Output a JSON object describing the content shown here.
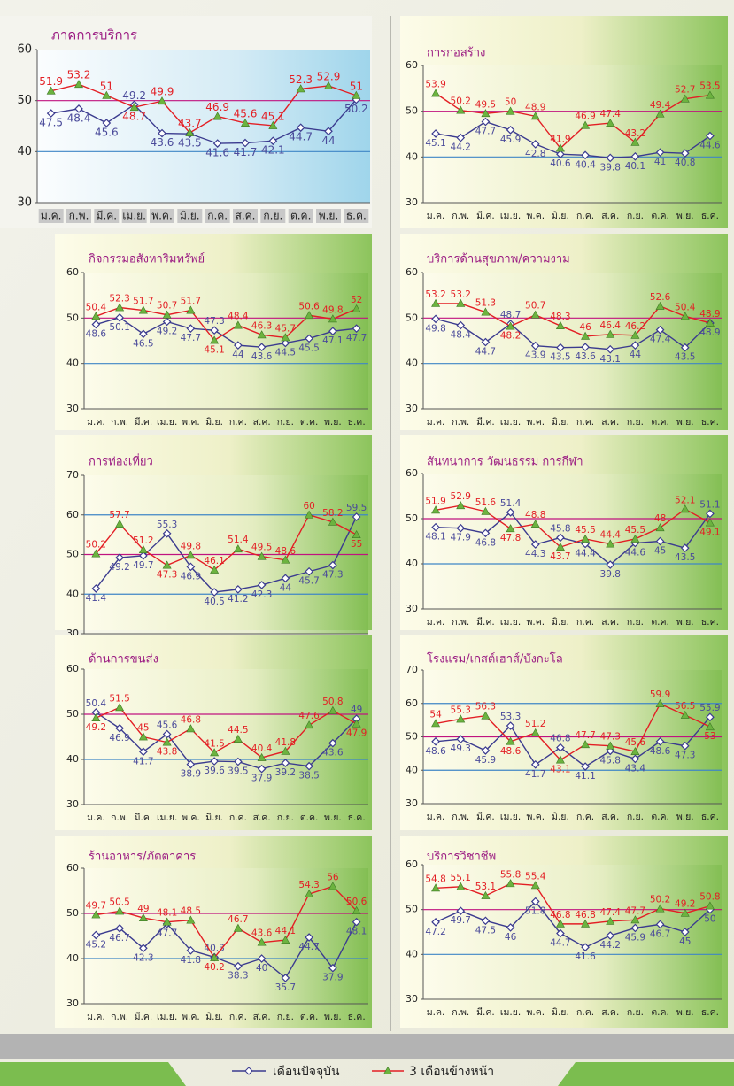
{
  "chart_data": [
    {
      "type": "line",
      "title": "ภาคการบริการ",
      "categories": [
        "ม.ค.",
        "ก.พ.",
        "มี.ค.",
        "เม.ย.",
        "พ.ค.",
        "มิ.ย.",
        "ก.ค.",
        "ส.ค.",
        "ก.ย.",
        "ต.ค.",
        "พ.ย.",
        "ธ.ค."
      ],
      "ylim": [
        30,
        60
      ],
      "yticks": [
        30,
        40,
        50,
        60
      ],
      "reference_line": {
        "value": 50,
        "color": "#c0137f"
      },
      "series": [
        {
          "name": "เดือนปัจจุบัน",
          "color": "#3b3b8f",
          "values": [
            47.5,
            48.4,
            45.6,
            49.2,
            43.6,
            43.5,
            41.6,
            41.7,
            42.1,
            44.7,
            44.0,
            50.2
          ]
        },
        {
          "name": "3 เดือนข้างหน้า",
          "color": "#e31e24",
          "marker_color": "#6cb33f",
          "values": [
            51.9,
            53.2,
            51.0,
            48.7,
            49.9,
            43.7,
            46.9,
            45.6,
            45.1,
            52.3,
            52.9,
            51.0
          ]
        }
      ]
    },
    {
      "type": "line",
      "title": "การก่อสร้าง",
      "categories": [
        "ม.ค.",
        "ก.พ.",
        "มี.ค.",
        "เม.ย.",
        "พ.ค.",
        "มิ.ย.",
        "ก.ค.",
        "ส.ค.",
        "ก.ย.",
        "ต.ค.",
        "พ.ย.",
        "ธ.ค."
      ],
      "ylim": [
        30,
        60
      ],
      "yticks": [
        30,
        40,
        50,
        60
      ],
      "reference_line": {
        "value": 50,
        "color": "#c0137f"
      },
      "series": [
        {
          "color": "#3b3b8f",
          "values": [
            45.1,
            44.2,
            47.7,
            45.9,
            42.8,
            40.6,
            40.4,
            39.8,
            40.1,
            41.0,
            40.8,
            44.6
          ]
        },
        {
          "color": "#e31e24",
          "marker_color": "#6cb33f",
          "values": [
            53.9,
            50.2,
            49.5,
            50.0,
            48.9,
            41.9,
            46.9,
            47.4,
            43.2,
            49.4,
            52.7,
            53.5
          ]
        }
      ]
    },
    {
      "type": "line",
      "title": "กิจกรรมอสังหาริมทรัพย์",
      "categories": [
        "ม.ค.",
        "ก.พ.",
        "มี.ค.",
        "เม.ย.",
        "พ.ค.",
        "มิ.ย.",
        "ก.ค.",
        "ส.ค.",
        "ก.ย.",
        "ต.ค.",
        "พ.ย.",
        "ธ.ค."
      ],
      "ylim": [
        30,
        60
      ],
      "yticks": [
        30,
        40,
        50,
        60
      ],
      "reference_line": {
        "value": 50,
        "color": "#c0137f"
      },
      "series": [
        {
          "color": "#3b3b8f",
          "values": [
            48.6,
            50.1,
            46.5,
            49.2,
            47.7,
            47.3,
            44.0,
            43.6,
            44.5,
            45.5,
            47.1,
            47.7
          ]
        },
        {
          "color": "#e31e24",
          "marker_color": "#6cb33f",
          "values": [
            50.4,
            52.3,
            51.7,
            50.7,
            51.7,
            45.1,
            48.4,
            46.3,
            45.7,
            50.6,
            49.8,
            52.0
          ]
        }
      ]
    },
    {
      "type": "line",
      "title": "บริการด้านสุขภาพ/ความงาม",
      "categories": [
        "ม.ค.",
        "ก.พ.",
        "มี.ค.",
        "เม.ย.",
        "พ.ค.",
        "มิ.ย.",
        "ก.ค.",
        "ส.ค.",
        "ก.ย.",
        "ต.ค.",
        "พ.ย.",
        "ธ.ค."
      ],
      "ylim": [
        30,
        60
      ],
      "yticks": [
        30,
        40,
        50,
        60
      ],
      "reference_line": {
        "value": 50,
        "color": "#c0137f"
      },
      "series": [
        {
          "color": "#3b3b8f",
          "values": [
            49.8,
            48.4,
            44.7,
            48.7,
            43.9,
            43.5,
            43.6,
            43.1,
            44.0,
            47.4,
            43.5,
            48.9
          ]
        },
        {
          "color": "#e31e24",
          "marker_color": "#6cb33f",
          "values": [
            53.2,
            53.2,
            51.3,
            48.2,
            50.7,
            48.3,
            46.0,
            46.4,
            46.2,
            52.6,
            50.4,
            48.9
          ]
        }
      ]
    },
    {
      "type": "line",
      "title": "การท่องเที่ยว",
      "categories": [
        "ม.ค.",
        "ก.พ.",
        "มี.ค.",
        "เม.ย.",
        "พ.ค.",
        "มิ.ย.",
        "ก.ค.",
        "ส.ค.",
        "ก.ย.",
        "ต.ค.",
        "พ.ย.",
        "ธ.ค."
      ],
      "ylim": [
        30,
        70
      ],
      "yticks": [
        30,
        40,
        50,
        60,
        70
      ],
      "reference_line": {
        "value": 50,
        "color": "#c0137f"
      },
      "series": [
        {
          "color": "#3b3b8f",
          "values": [
            41.4,
            49.2,
            49.7,
            55.3,
            46.9,
            40.5,
            41.2,
            42.3,
            44.0,
            45.7,
            47.3,
            59.5
          ]
        },
        {
          "color": "#e31e24",
          "marker_color": "#6cb33f",
          "values": [
            50.2,
            57.7,
            51.2,
            47.3,
            49.8,
            46.1,
            51.4,
            49.5,
            48.6,
            60.0,
            58.2,
            55.0
          ]
        }
      ]
    },
    {
      "type": "line",
      "title": "สันทนาการ วัฒนธรรม การกีฬา",
      "categories": [
        "ม.ค.",
        "ก.พ.",
        "มี.ค.",
        "เม.ย.",
        "พ.ค.",
        "มิ.ย.",
        "ก.ค.",
        "ส.ค.",
        "ก.ย.",
        "ต.ค.",
        "พ.ย.",
        "ธ.ค."
      ],
      "ylim": [
        30,
        60
      ],
      "yticks": [
        30,
        40,
        50,
        60
      ],
      "reference_line": {
        "value": 50,
        "color": "#c0137f"
      },
      "series": [
        {
          "color": "#3b3b8f",
          "values": [
            48.1,
            47.9,
            46.8,
            51.4,
            44.3,
            45.8,
            44.4,
            39.8,
            44.6,
            45.0,
            43.5,
            51.1
          ]
        },
        {
          "color": "#e31e24",
          "marker_color": "#6cb33f",
          "values": [
            51.9,
            52.9,
            51.6,
            47.8,
            48.8,
            43.7,
            45.5,
            44.4,
            45.5,
            48.0,
            52.1,
            49.1
          ]
        }
      ]
    },
    {
      "type": "line",
      "title": "ด้านการขนส่ง",
      "categories": [
        "ม.ค.",
        "ก.พ.",
        "มี.ค.",
        "เม.ย.",
        "พ.ค.",
        "มิ.ย.",
        "ก.ค.",
        "ส.ค.",
        "ก.ย.",
        "ต.ค.",
        "พ.ย.",
        "ธ.ค."
      ],
      "ylim": [
        30,
        60
      ],
      "yticks": [
        30,
        40,
        50,
        60
      ],
      "reference_line": {
        "value": 50,
        "color": "#c0137f"
      },
      "series": [
        {
          "color": "#3b3b8f",
          "values": [
            50.4,
            46.9,
            41.7,
            45.6,
            38.9,
            39.6,
            39.5,
            37.9,
            39.2,
            38.5,
            43.6,
            49.0
          ]
        },
        {
          "color": "#e31e24",
          "marker_color": "#6cb33f",
          "values": [
            49.2,
            51.5,
            45.0,
            43.8,
            46.8,
            41.5,
            44.5,
            40.4,
            41.8,
            47.6,
            50.8,
            47.9
          ]
        }
      ]
    },
    {
      "type": "line",
      "title": "โรงแรม/เกสต์เฮาส์/บังกะโล",
      "categories": [
        "ม.ค.",
        "ก.พ.",
        "มี.ค.",
        "เม.ย.",
        "พ.ค.",
        "มิ.ย.",
        "ก.ค.",
        "ส.ค.",
        "ก.ย.",
        "ต.ค.",
        "พ.ย.",
        "ธ.ค."
      ],
      "ylim": [
        30,
        70
      ],
      "yticks": [
        30,
        40,
        50,
        60,
        70
      ],
      "reference_line": {
        "value": 50,
        "color": "#c0137f"
      },
      "series": [
        {
          "color": "#3b3b8f",
          "values": [
            48.6,
            49.3,
            45.9,
            53.3,
            41.7,
            46.8,
            41.1,
            45.8,
            43.4,
            48.6,
            47.3,
            55.9
          ]
        },
        {
          "color": "#e31e24",
          "marker_color": "#6cb33f",
          "values": [
            54.0,
            55.3,
            56.3,
            48.6,
            51.2,
            43.1,
            47.7,
            47.3,
            45.6,
            59.9,
            56.5,
            53.0
          ]
        }
      ]
    },
    {
      "type": "line",
      "title": "ร้านอาหาร/ภัตตาคาร",
      "categories": [
        "ม.ค.",
        "ก.พ.",
        "มี.ค.",
        "เม.ย.",
        "พ.ค.",
        "มิ.ย.",
        "ก.ค.",
        "ส.ค.",
        "ก.ย.",
        "ต.ค.",
        "พ.ย.",
        "ธ.ค."
      ],
      "ylim": [
        30,
        60
      ],
      "yticks": [
        30,
        40,
        50,
        60
      ],
      "reference_line": {
        "value": 50,
        "color": "#c0137f"
      },
      "series": [
        {
          "color": "#3b3b8f",
          "values": [
            45.2,
            46.7,
            42.3,
            47.7,
            41.8,
            40.3,
            38.3,
            40.0,
            35.7,
            44.7,
            37.9,
            48.1
          ]
        },
        {
          "color": "#e31e24",
          "marker_color": "#6cb33f",
          "values": [
            49.7,
            50.5,
            49.0,
            48.1,
            48.5,
            40.2,
            46.7,
            43.6,
            44.1,
            54.3,
            56.0,
            50.6
          ]
        }
      ]
    },
    {
      "type": "line",
      "title": "บริการวิชาชีพ",
      "categories": [
        "ม.ค.",
        "ก.พ.",
        "มี.ค.",
        "เม.ย.",
        "พ.ค.",
        "มิ.ย.",
        "ก.ค.",
        "ส.ค.",
        "ก.ย.",
        "ต.ค.",
        "พ.ย.",
        "ธ.ค."
      ],
      "ylim": [
        30,
        60
      ],
      "yticks": [
        30,
        40,
        50,
        60
      ],
      "reference_line": {
        "value": 50,
        "color": "#c0137f"
      },
      "series": [
        {
          "color": "#3b3b8f",
          "values": [
            47.2,
            49.7,
            47.5,
            46.0,
            51.8,
            44.7,
            41.6,
            44.2,
            45.9,
            46.7,
            45.0,
            50.0
          ]
        },
        {
          "color": "#e31e24",
          "marker_color": "#6cb33f",
          "values": [
            54.8,
            55.1,
            53.1,
            55.8,
            55.4,
            46.8,
            46.8,
            47.4,
            47.7,
            50.2,
            49.2,
            50.8
          ]
        }
      ]
    }
  ]
}
